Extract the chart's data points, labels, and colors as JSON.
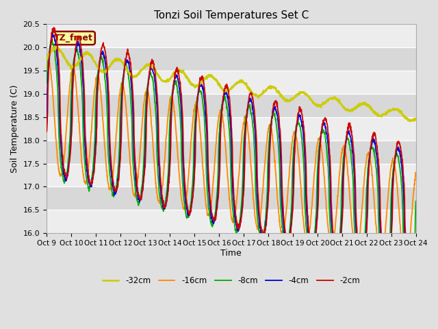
{
  "title": "Tonzi Soil Temperatures Set C",
  "xlabel": "Time",
  "ylabel": "Soil Temperature (C)",
  "ylim": [
    16.0,
    20.5
  ],
  "yticks": [
    16.0,
    16.5,
    17.0,
    17.5,
    18.0,
    18.5,
    19.0,
    19.5,
    20.0,
    20.5
  ],
  "xtick_labels": [
    "Oct 9",
    "Oct 10",
    "Oct 11",
    "Oct 12",
    "Oct 13",
    "Oct 14",
    "Oct 15",
    "Oct 16",
    "Oct 17",
    "Oct 18",
    "Oct 19",
    "Oct 20",
    "Oct 21",
    "Oct 22",
    "Oct 23",
    "Oct 24"
  ],
  "annotation_text": "TZ_fmet",
  "annotation_bg": "#FFFFA0",
  "annotation_border": "#8B0000",
  "line_colors": [
    "#CC0000",
    "#0000CC",
    "#00AA00",
    "#FF8800",
    "#CCCC00"
  ],
  "line_labels": [
    "-2cm",
    "-4cm",
    "-8cm",
    "-16cm",
    "-32cm"
  ],
  "line_widths": [
    1.3,
    1.3,
    1.3,
    1.3,
    1.8
  ],
  "bg_color": "#E0E0E0",
  "plot_bg": "#D8D8D8",
  "grid_color": "#FFFFFF",
  "figsize": [
    6.4,
    4.8
  ],
  "dpi": 100
}
